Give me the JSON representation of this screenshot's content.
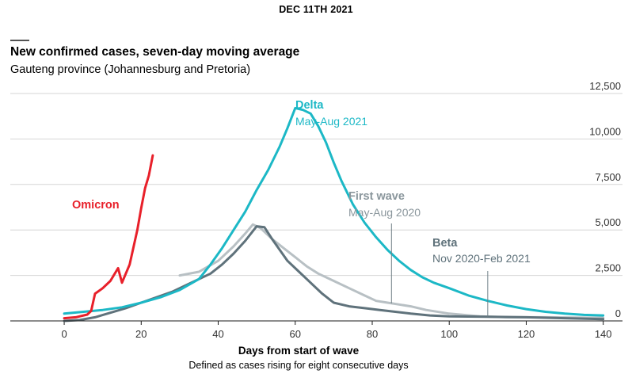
{
  "header": {
    "date": "DEC 11TH 2021",
    "title": "New confirmed cases, seven-day moving average",
    "subtitle": "Gauteng province (Johannesburg and Pretoria)"
  },
  "colors": {
    "delta": "#1cb8c6",
    "first_wave": "#b8c0c4",
    "beta": "#5f727b",
    "omicron": "#e8202a",
    "grid": "#d6d6d6",
    "axis": "#1a1a1a"
  },
  "chart_data": {
    "type": "line",
    "xlabel": "Days from start of wave",
    "xnote": "Defined as cases rising for eight consecutive days",
    "ylabel": "",
    "xlim": [
      -14,
      145
    ],
    "ylim": [
      0,
      12500
    ],
    "x_ticks": [
      0,
      20,
      40,
      60,
      80,
      100,
      120,
      140
    ],
    "x_tick_labels": [
      "0",
      "20",
      "40",
      "60",
      "80",
      "100",
      "120",
      "140"
    ],
    "y_ticks": [
      0,
      2500,
      5000,
      7500,
      10000,
      12500
    ],
    "y_tick_labels": [
      "0",
      "2,500",
      "5,000",
      "7,500",
      "10,000",
      "12,500"
    ],
    "grid": true,
    "series": [
      {
        "key": "first_wave",
        "name": "First wave",
        "period": "May-Aug 2020",
        "points": [
          [
            30,
            2500
          ],
          [
            35,
            2700
          ],
          [
            40,
            3300
          ],
          [
            44,
            4100
          ],
          [
            47,
            4800
          ],
          [
            49,
            5300
          ],
          [
            51,
            5100
          ],
          [
            54,
            4500
          ],
          [
            57,
            4000
          ],
          [
            60,
            3500
          ],
          [
            63,
            3000
          ],
          [
            66,
            2600
          ],
          [
            70,
            2200
          ],
          [
            74,
            1800
          ],
          [
            78,
            1400
          ],
          [
            81,
            1100
          ],
          [
            84,
            1000
          ],
          [
            87,
            900
          ],
          [
            90,
            800
          ],
          [
            94,
            600
          ],
          [
            100,
            400
          ],
          [
            108,
            250
          ],
          [
            115,
            200
          ],
          [
            125,
            200
          ],
          [
            135,
            180
          ],
          [
            140,
            170
          ]
        ]
      },
      {
        "key": "beta",
        "name": "Beta",
        "period": "Nov 2020-Feb 2021",
        "points": [
          [
            0,
            0
          ],
          [
            4,
            50
          ],
          [
            8,
            200
          ],
          [
            12,
            450
          ],
          [
            16,
            700
          ],
          [
            20,
            1000
          ],
          [
            24,
            1300
          ],
          [
            28,
            1600
          ],
          [
            32,
            2000
          ],
          [
            35,
            2300
          ],
          [
            38,
            2600
          ],
          [
            41,
            3100
          ],
          [
            44,
            3700
          ],
          [
            47,
            4400
          ],
          [
            50,
            5200
          ],
          [
            52,
            5150
          ],
          [
            54,
            4500
          ],
          [
            56,
            3900
          ],
          [
            58,
            3300
          ],
          [
            61,
            2700
          ],
          [
            64,
            2100
          ],
          [
            67,
            1500
          ],
          [
            70,
            1000
          ],
          [
            74,
            800
          ],
          [
            78,
            700
          ],
          [
            82,
            600
          ],
          [
            86,
            500
          ],
          [
            90,
            400
          ],
          [
            95,
            300
          ],
          [
            100,
            250
          ],
          [
            110,
            230
          ],
          [
            120,
            200
          ],
          [
            130,
            150
          ],
          [
            140,
            100
          ]
        ]
      },
      {
        "key": "delta",
        "name": "Delta",
        "period": "May-Aug 2021",
        "points": [
          [
            0,
            400
          ],
          [
            5,
            500
          ],
          [
            10,
            600
          ],
          [
            15,
            750
          ],
          [
            20,
            1000
          ],
          [
            25,
            1300
          ],
          [
            30,
            1700
          ],
          [
            35,
            2300
          ],
          [
            38,
            3100
          ],
          [
            41,
            4000
          ],
          [
            44,
            5000
          ],
          [
            47,
            6000
          ],
          [
            50,
            7200
          ],
          [
            53,
            8300
          ],
          [
            56,
            9600
          ],
          [
            58,
            10600
          ],
          [
            60,
            11700
          ],
          [
            62,
            11600
          ],
          [
            64,
            11400
          ],
          [
            66,
            10700
          ],
          [
            68,
            9800
          ],
          [
            70,
            8700
          ],
          [
            72,
            7700
          ],
          [
            75,
            6400
          ],
          [
            78,
            5400
          ],
          [
            81,
            4600
          ],
          [
            84,
            3900
          ],
          [
            87,
            3300
          ],
          [
            90,
            2800
          ],
          [
            93,
            2400
          ],
          [
            96,
            2100
          ],
          [
            100,
            1800
          ],
          [
            105,
            1400
          ],
          [
            110,
            1100
          ],
          [
            115,
            850
          ],
          [
            120,
            650
          ],
          [
            125,
            500
          ],
          [
            130,
            400
          ],
          [
            135,
            330
          ],
          [
            140,
            300
          ]
        ]
      },
      {
        "key": "omicron",
        "name": "Omicron",
        "period": "",
        "points": [
          [
            0,
            150
          ],
          [
            3,
            200
          ],
          [
            6,
            350
          ],
          [
            7,
            550
          ],
          [
            8,
            1500
          ],
          [
            10,
            1800
          ],
          [
            12,
            2200
          ],
          [
            14,
            2900
          ],
          [
            15,
            2100
          ],
          [
            17,
            3100
          ],
          [
            19,
            5000
          ],
          [
            20,
            6200
          ],
          [
            21,
            7300
          ],
          [
            22,
            8000
          ],
          [
            23,
            9100
          ]
        ]
      }
    ],
    "annotations": [
      {
        "series": "first_wave",
        "marker_x": 85
      },
      {
        "series": "beta",
        "marker_x": 110
      }
    ]
  }
}
